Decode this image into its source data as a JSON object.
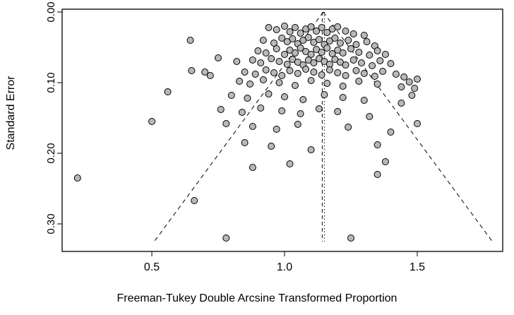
{
  "figure": {
    "background_color": "#ffffff",
    "box_color": "#000000"
  },
  "chart_data": {
    "type": "scatter",
    "subtype": "funnel-plot",
    "title": "",
    "xlabel": "Freeman-Tukey Double Arcsine Transformed Proportion",
    "ylabel": "Standard Error",
    "x_ticks": [
      0.5,
      1.0,
      1.5
    ],
    "x_tick_labels": [
      "0.5",
      "1.0",
      "1.5"
    ],
    "y_ticks": [
      0.0,
      0.1,
      0.2,
      0.3
    ],
    "y_tick_labels": [
      "0.00",
      "0.10",
      "0.20",
      "0.30"
    ],
    "xlim": [
      0.162,
      1.822
    ],
    "ylim_se": [
      -0.004,
      0.339
    ],
    "y_axis_inverted": true,
    "grid": false,
    "legend": "none",
    "point_style": {
      "fill": "#b8b8b8",
      "stroke": "#000000",
      "radius": 4.5
    },
    "funnel": {
      "center": 1.146,
      "ci_multiplier": 1.96,
      "se_max": 0.325,
      "edge_line_style": "dashed",
      "center_line_style": "dash-dot"
    },
    "points": [
      [
        0.94,
        0.022
      ],
      [
        0.97,
        0.025
      ],
      [
        1.0,
        0.02
      ],
      [
        1.02,
        0.028
      ],
      [
        1.04,
        0.022
      ],
      [
        1.06,
        0.03
      ],
      [
        1.08,
        0.024
      ],
      [
        1.1,
        0.021
      ],
      [
        1.12,
        0.027
      ],
      [
        1.14,
        0.022
      ],
      [
        1.16,
        0.029
      ],
      [
        1.18,
        0.024
      ],
      [
        1.2,
        0.021
      ],
      [
        1.23,
        0.027
      ],
      [
        1.26,
        0.031
      ],
      [
        1.3,
        0.033
      ],
      [
        0.92,
        0.04
      ],
      [
        0.96,
        0.044
      ],
      [
        0.99,
        0.037
      ],
      [
        1.01,
        0.042
      ],
      [
        1.03,
        0.038
      ],
      [
        1.05,
        0.045
      ],
      [
        1.07,
        0.04
      ],
      [
        1.09,
        0.036
      ],
      [
        1.11,
        0.043
      ],
      [
        1.13,
        0.039
      ],
      [
        1.15,
        0.046
      ],
      [
        1.17,
        0.041
      ],
      [
        1.19,
        0.037
      ],
      [
        1.21,
        0.044
      ],
      [
        1.24,
        0.04
      ],
      [
        1.27,
        0.046
      ],
      [
        1.31,
        0.042
      ],
      [
        1.34,
        0.048
      ],
      [
        0.645,
        0.04
      ],
      [
        0.9,
        0.055
      ],
      [
        0.93,
        0.058
      ],
      [
        0.97,
        0.052
      ],
      [
        1.0,
        0.06
      ],
      [
        1.02,
        0.054
      ],
      [
        1.04,
        0.058
      ],
      [
        1.06,
        0.051
      ],
      [
        1.08,
        0.056
      ],
      [
        1.1,
        0.06
      ],
      [
        1.12,
        0.053
      ],
      [
        1.14,
        0.057
      ],
      [
        1.16,
        0.051
      ],
      [
        1.18,
        0.059
      ],
      [
        1.2,
        0.054
      ],
      [
        1.22,
        0.058
      ],
      [
        1.25,
        0.052
      ],
      [
        1.28,
        0.057
      ],
      [
        1.32,
        0.061
      ],
      [
        1.35,
        0.055
      ],
      [
        1.38,
        0.06
      ],
      [
        0.88,
        0.068
      ],
      [
        0.91,
        0.072
      ],
      [
        0.95,
        0.066
      ],
      [
        0.98,
        0.07
      ],
      [
        1.01,
        0.074
      ],
      [
        1.03,
        0.067
      ],
      [
        1.05,
        0.071
      ],
      [
        1.07,
        0.075
      ],
      [
        1.09,
        0.068
      ],
      [
        1.11,
        0.072
      ],
      [
        1.13,
        0.066
      ],
      [
        1.15,
        0.07
      ],
      [
        1.17,
        0.074
      ],
      [
        1.19,
        0.067
      ],
      [
        1.21,
        0.071
      ],
      [
        1.23,
        0.075
      ],
      [
        1.26,
        0.068
      ],
      [
        1.29,
        0.072
      ],
      [
        1.33,
        0.076
      ],
      [
        1.36,
        0.069
      ],
      [
        1.4,
        0.073
      ],
      [
        0.75,
        0.065
      ],
      [
        0.82,
        0.07
      ],
      [
        0.85,
        0.085
      ],
      [
        0.89,
        0.088
      ],
      [
        0.93,
        0.082
      ],
      [
        0.96,
        0.086
      ],
      [
        0.99,
        0.09
      ],
      [
        1.02,
        0.083
      ],
      [
        1.05,
        0.087
      ],
      [
        1.08,
        0.081
      ],
      [
        1.11,
        0.085
      ],
      [
        1.14,
        0.089
      ],
      [
        1.17,
        0.082
      ],
      [
        1.2,
        0.086
      ],
      [
        1.23,
        0.09
      ],
      [
        1.27,
        0.083
      ],
      [
        1.3,
        0.087
      ],
      [
        1.34,
        0.091
      ],
      [
        1.37,
        0.084
      ],
      [
        1.42,
        0.088
      ],
      [
        1.45,
        0.092
      ],
      [
        0.7,
        0.085
      ],
      [
        0.72,
        0.09
      ],
      [
        0.65,
        0.083
      ],
      [
        0.83,
        0.098
      ],
      [
        0.87,
        0.102
      ],
      [
        0.92,
        0.096
      ],
      [
        0.98,
        0.1
      ],
      [
        1.04,
        0.104
      ],
      [
        1.1,
        0.097
      ],
      [
        1.16,
        0.101
      ],
      [
        1.22,
        0.105
      ],
      [
        1.28,
        0.098
      ],
      [
        1.35,
        0.102
      ],
      [
        1.44,
        0.106
      ],
      [
        1.47,
        0.099
      ],
      [
        1.5,
        0.095
      ],
      [
        1.49,
        0.108
      ],
      [
        0.56,
        0.113
      ],
      [
        0.8,
        0.118
      ],
      [
        0.86,
        0.122
      ],
      [
        0.94,
        0.116
      ],
      [
        1.0,
        0.12
      ],
      [
        1.07,
        0.124
      ],
      [
        1.15,
        0.117
      ],
      [
        1.22,
        0.121
      ],
      [
        1.3,
        0.125
      ],
      [
        1.44,
        0.129
      ],
      [
        1.48,
        0.118
      ],
      [
        0.76,
        0.138
      ],
      [
        0.84,
        0.142
      ],
      [
        0.91,
        0.136
      ],
      [
        0.99,
        0.14
      ],
      [
        1.06,
        0.144
      ],
      [
        1.13,
        0.137
      ],
      [
        1.2,
        0.141
      ],
      [
        1.32,
        0.148
      ],
      [
        0.5,
        0.155
      ],
      [
        0.78,
        0.158
      ],
      [
        0.88,
        0.162
      ],
      [
        0.97,
        0.166
      ],
      [
        1.05,
        0.159
      ],
      [
        1.24,
        0.163
      ],
      [
        1.4,
        0.17
      ],
      [
        1.5,
        0.158
      ],
      [
        0.85,
        0.185
      ],
      [
        0.95,
        0.19
      ],
      [
        1.1,
        0.195
      ],
      [
        1.35,
        0.188
      ],
      [
        0.22,
        0.235
      ],
      [
        0.88,
        0.22
      ],
      [
        1.02,
        0.215
      ],
      [
        1.38,
        0.212
      ],
      [
        0.66,
        0.267
      ],
      [
        1.35,
        0.23
      ],
      [
        0.78,
        0.32
      ],
      [
        1.25,
        0.32
      ]
    ]
  }
}
